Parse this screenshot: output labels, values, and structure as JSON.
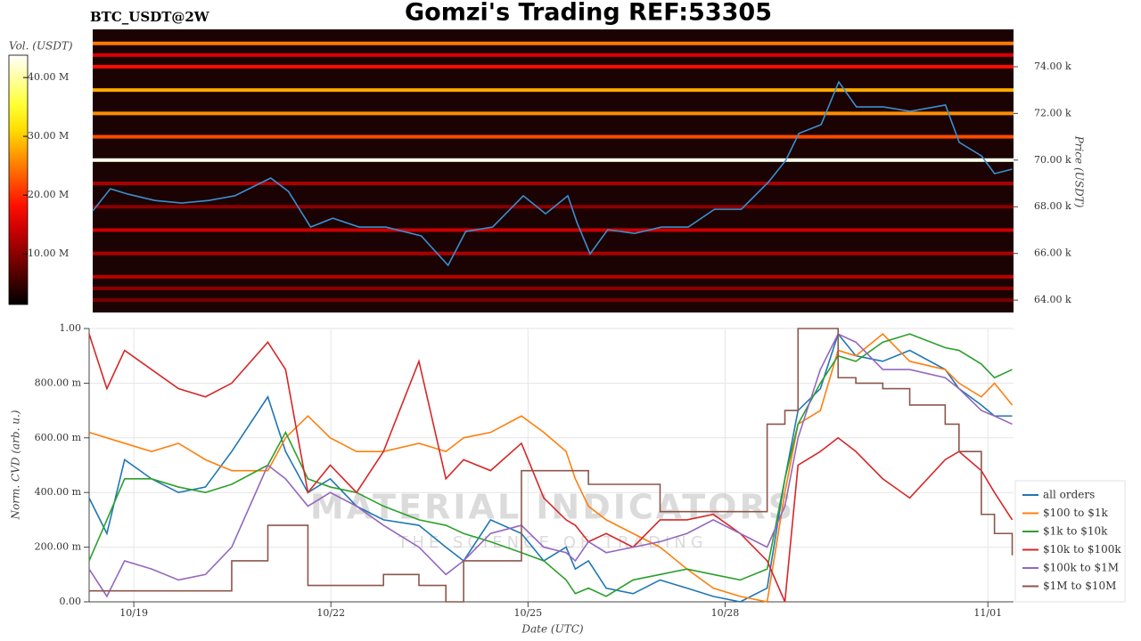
{
  "chart_data": [
    {
      "type": "heatmap",
      "title": "Gomzi's Trading REF:53305",
      "subtitle": "BTC_USDT@2W",
      "colorbar_label": "Vol. (USDT)",
      "ylabel": "Price (USDT)",
      "clim": [
        1.4,
        43.8
      ],
      "colorbar_ticks": [
        {
          "value": 10,
          "label": "10.00 M"
        },
        {
          "value": 20,
          "label": "20.00 M"
        },
        {
          "value": 30,
          "label": "30.00 M"
        },
        {
          "value": 40,
          "label": "40.00 M"
        }
      ],
      "xlim": [
        18.32,
        32.39
      ],
      "ylim": [
        63.47,
        75.6
      ],
      "yticks": [
        {
          "value": 64,
          "label": "64.00 k"
        },
        {
          "value": 66,
          "label": "66.00 k"
        },
        {
          "value": 68,
          "label": "68.00 k"
        },
        {
          "value": 70,
          "label": "70.00 k"
        },
        {
          "value": 72,
          "label": "72.00 k"
        },
        {
          "value": 74,
          "label": "74.00 k"
        }
      ],
      "heatmap": {
        "prices": [
          75.0,
          74.5,
          74.0,
          73.0,
          72.0,
          71.0,
          70.0,
          69.0,
          68.0,
          67.0,
          66.0,
          65.0,
          64.5,
          64.0
        ],
        "volumes": [
          25,
          15,
          18,
          28,
          26,
          22,
          43,
          12,
          10,
          14,
          12,
          13,
          10,
          9
        ]
      },
      "color": "#3a8fd0",
      "x": [
        18.32,
        18.59,
        18.86,
        19.27,
        19.68,
        20.09,
        20.49,
        21.04,
        21.31,
        21.65,
        21.99,
        22.39,
        22.8,
        23.34,
        23.75,
        24.02,
        24.43,
        24.9,
        25.24,
        25.58,
        25.72,
        25.92,
        26.19,
        26.6,
        27.01,
        27.42,
        27.82,
        28.23,
        28.64,
        28.91,
        29.11,
        29.45,
        29.72,
        29.99,
        30.4,
        30.81,
        31.35,
        31.56,
        31.9,
        32.1,
        32.37
      ],
      "values": [
        67.82,
        68.77,
        68.54,
        68.27,
        68.16,
        68.27,
        68.47,
        69.23,
        68.66,
        67.13,
        67.51,
        67.13,
        67.13,
        66.75,
        65.49,
        66.94,
        67.13,
        68.47,
        67.7,
        68.47,
        67.32,
        65.98,
        67.02,
        66.86,
        67.13,
        67.13,
        67.89,
        67.89,
        69.04,
        69.99,
        71.14,
        71.52,
        73.35,
        72.28,
        72.28,
        72.09,
        72.36,
        70.76,
        70.18,
        69.42,
        69.61
      ]
    },
    {
      "type": "line",
      "ylabel": "Norm. CVD (arb. u.)",
      "xlabel": "Date (UTC)",
      "watermark": "MATERIAL INDICATORS",
      "watermark_subtitle": "THE SCIENCE OF TRADING",
      "grid": true,
      "xlim": [
        18.32,
        32.39
      ],
      "xticks": [
        {
          "value": 19,
          "label": "10/19"
        },
        {
          "value": 22,
          "label": "10/22"
        },
        {
          "value": 25,
          "label": "10/25"
        },
        {
          "value": 28,
          "label": "10/28"
        },
        {
          "value": 32,
          "label": "11/01"
        }
      ],
      "ylim": [
        0,
        1
      ],
      "yticks": [
        {
          "value": 0,
          "label": "0.00"
        },
        {
          "value": 0.2,
          "label": "200.00 m"
        },
        {
          "value": 0.4,
          "label": "400.00 m"
        },
        {
          "value": 0.6,
          "label": "600.00 m"
        },
        {
          "value": 0.8,
          "label": "800.00 m"
        },
        {
          "value": 1,
          "label": "1.00"
        }
      ],
      "x": [
        18.32,
        18.59,
        18.86,
        19.27,
        19.68,
        20.09,
        20.49,
        21.04,
        21.31,
        21.65,
        21.99,
        22.39,
        22.8,
        23.34,
        23.75,
        24.02,
        24.43,
        24.9,
        25.24,
        25.58,
        25.72,
        25.92,
        26.19,
        26.6,
        27.01,
        27.42,
        27.82,
        28.23,
        28.64,
        28.91,
        29.11,
        29.45,
        29.72,
        29.99,
        30.4,
        30.81,
        31.35,
        31.56,
        31.9,
        32.1,
        32.37
      ],
      "series": [
        {
          "name": "all orders",
          "color": "#1f77b4",
          "values": [
            0.38,
            0.25,
            0.52,
            0.45,
            0.4,
            0.42,
            0.55,
            0.75,
            0.55,
            0.4,
            0.45,
            0.35,
            0.3,
            0.28,
            0.2,
            0.15,
            0.3,
            0.25,
            0.15,
            0.2,
            0.12,
            0.15,
            0.05,
            0.03,
            0.08,
            0.05,
            0.02,
            0.0,
            0.05,
            0.45,
            0.7,
            0.78,
            0.98,
            0.9,
            0.88,
            0.92,
            0.85,
            0.78,
            0.72,
            0.68,
            0.68
          ]
        },
        {
          "name": "$100 to $1k",
          "color": "#ff7f0e",
          "values": [
            0.62,
            0.6,
            0.58,
            0.55,
            0.58,
            0.52,
            0.48,
            0.48,
            0.6,
            0.68,
            0.6,
            0.55,
            0.55,
            0.58,
            0.55,
            0.6,
            0.62,
            0.68,
            0.62,
            0.55,
            0.45,
            0.35,
            0.3,
            0.25,
            0.2,
            0.12,
            0.05,
            0.02,
            0.0,
            0.4,
            0.65,
            0.7,
            0.92,
            0.9,
            0.98,
            0.88,
            0.85,
            0.8,
            0.75,
            0.8,
            0.72
          ]
        },
        {
          "name": "$1k to $10k",
          "color": "#2ca02c",
          "values": [
            0.15,
            0.3,
            0.45,
            0.45,
            0.42,
            0.4,
            0.43,
            0.5,
            0.62,
            0.45,
            0.42,
            0.4,
            0.35,
            0.3,
            0.28,
            0.25,
            0.22,
            0.18,
            0.15,
            0.08,
            0.03,
            0.05,
            0.02,
            0.08,
            0.1,
            0.12,
            0.1,
            0.08,
            0.12,
            0.45,
            0.65,
            0.8,
            0.9,
            0.88,
            0.95,
            0.98,
            0.93,
            0.92,
            0.87,
            0.82,
            0.85
          ]
        },
        {
          "name": "$10k to $100k",
          "color": "#d62728",
          "values": [
            0.98,
            0.78,
            0.92,
            0.85,
            0.78,
            0.75,
            0.8,
            0.95,
            0.85,
            0.4,
            0.5,
            0.4,
            0.55,
            0.88,
            0.45,
            0.52,
            0.48,
            0.58,
            0.38,
            0.3,
            0.28,
            0.22,
            0.25,
            0.2,
            0.3,
            0.3,
            0.32,
            0.25,
            0.15,
            0.0,
            0.5,
            0.55,
            0.6,
            0.55,
            0.45,
            0.38,
            0.52,
            0.55,
            0.48,
            0.4,
            0.3
          ]
        },
        {
          "name": "$100k to $1M",
          "color": "#9467bd",
          "values": [
            0.12,
            0.02,
            0.15,
            0.12,
            0.08,
            0.1,
            0.2,
            0.5,
            0.45,
            0.35,
            0.4,
            0.35,
            0.28,
            0.2,
            0.1,
            0.15,
            0.25,
            0.28,
            0.2,
            0.18,
            0.15,
            0.22,
            0.18,
            0.2,
            0.22,
            0.25,
            0.3,
            0.25,
            0.2,
            0.35,
            0.6,
            0.85,
            0.98,
            0.95,
            0.85,
            0.85,
            0.82,
            0.78,
            0.7,
            0.68,
            0.65
          ]
        },
        {
          "name": "$1M to $10M",
          "color": "#8c564b",
          "step": true,
          "values": [
            0.04,
            0.04,
            0.04,
            0.04,
            0.04,
            0.04,
            0.15,
            0.28,
            0.28,
            0.06,
            0.06,
            0.06,
            0.1,
            0.06,
            0.0,
            0.15,
            0.15,
            0.48,
            0.48,
            0.48,
            0.48,
            0.43,
            0.43,
            0.43,
            0.33,
            0.33,
            0.33,
            0.33,
            0.65,
            0.7,
            1.0,
            1.0,
            0.82,
            0.8,
            0.78,
            0.72,
            0.65,
            0.55,
            0.32,
            0.25,
            0.17
          ]
        }
      ]
    }
  ]
}
